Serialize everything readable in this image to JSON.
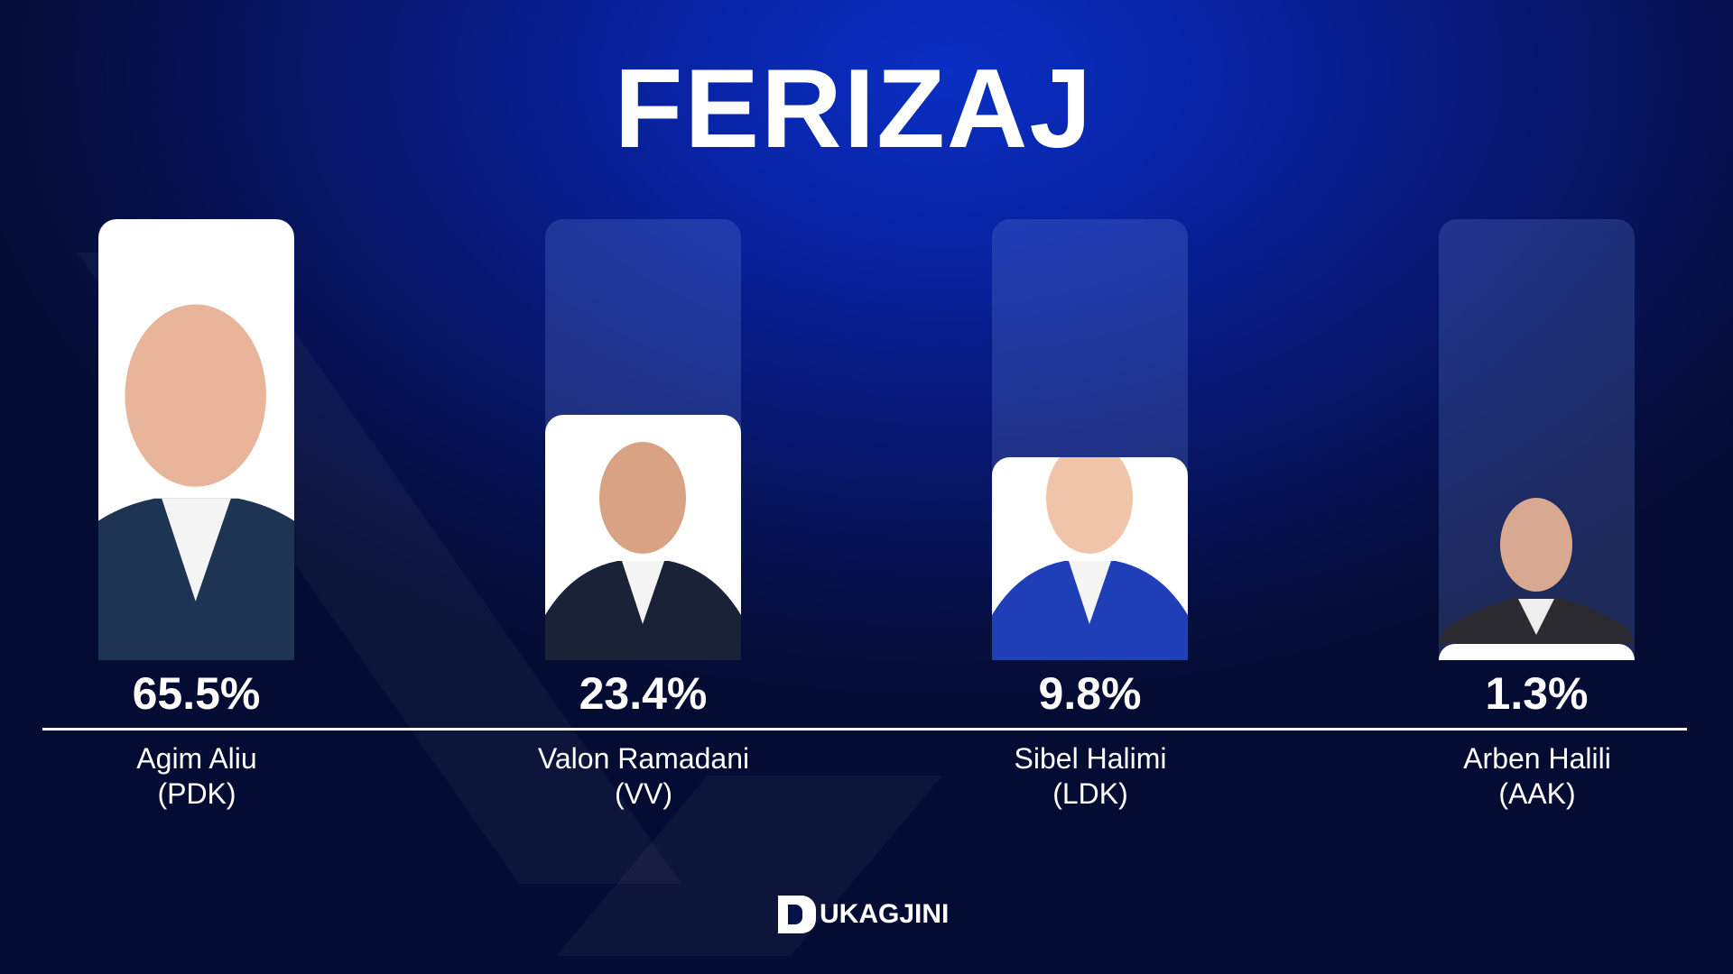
{
  "title": "FERIZAJ",
  "chart_data": {
    "type": "bar",
    "title": "FERIZAJ",
    "categories": [
      "Agim Aliu (PDK)",
      "Valon Ramadani (VV)",
      "Sibel Halimi (LDK)",
      "Arben Halili (AAK)"
    ],
    "values": [
      65.5,
      23.4,
      9.8,
      1.3
    ],
    "labels": [
      "65.5%",
      "23.4%",
      "9.8%",
      "1.3%"
    ],
    "candidates": [
      {
        "name": "Agim Aliu",
        "party": "(PDK)",
        "value": 65.5,
        "label": "65.5%"
      },
      {
        "name": "Valon Ramadani",
        "party": "(VV)",
        "value": 23.4,
        "label": "23.4%"
      },
      {
        "name": "Sibel Halimi",
        "party": "(LDK)",
        "value": 9.8,
        "label": "9.8%"
      },
      {
        "name": "Arben Halili",
        "party": "(AAK)",
        "value": 1.3,
        "label": "1.3%"
      }
    ],
    "grid": false
  },
  "colors": {
    "background": "#0822a0",
    "bar_fill": "#ffffff",
    "bar_track": "#3a4fb0"
  },
  "logo": {
    "text": "UKAGJINI",
    "mark": "D"
  }
}
